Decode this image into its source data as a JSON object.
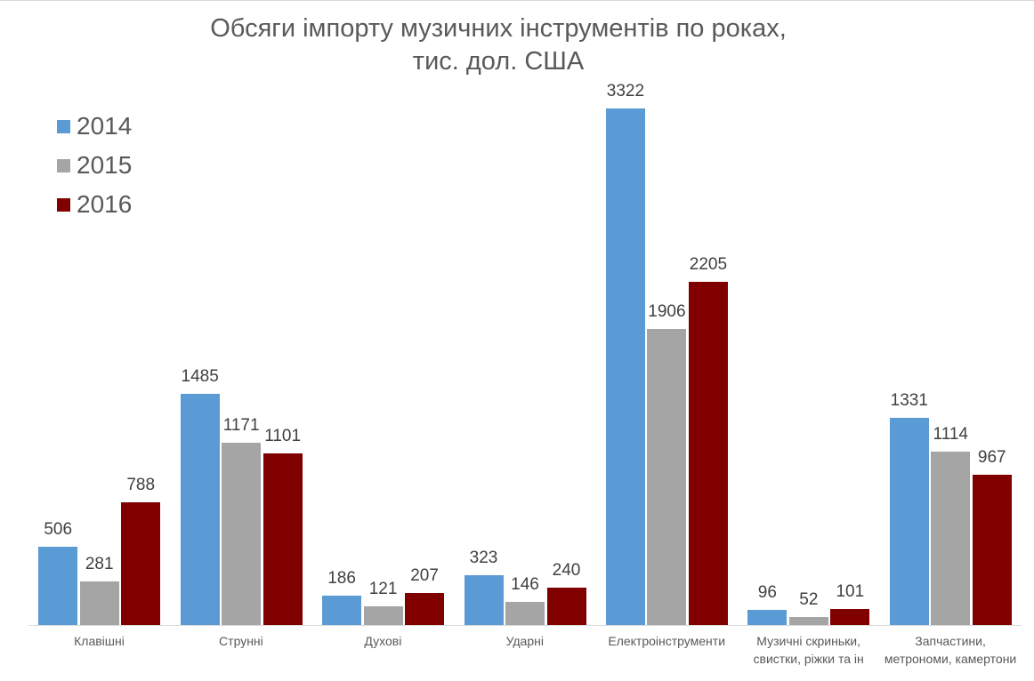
{
  "chart_data": {
    "type": "bar",
    "title": "Обсяги імпорту музичних інструментів по роках, тис. дол. США",
    "title_lines": [
      "Обсяги імпорту музичних інструментів по роках,",
      "тис. дол. США"
    ],
    "xlabel": "",
    "ylabel": "",
    "categories": [
      "Клавішні",
      "Струнні",
      "Духові",
      "Ударні",
      "Електроінструменти",
      "Музичні скриньки, свистки, ріжки та ін",
      "Запчастини, метрономи, камертони"
    ],
    "category_lines": [
      [
        "Клавішні"
      ],
      [
        "Струнні"
      ],
      [
        "Духові"
      ],
      [
        "Ударні"
      ],
      [
        "Електроінструменти"
      ],
      [
        "Музичні скриньки,",
        "свистки, ріжки та ін"
      ],
      [
        "Запчастини,",
        "метрономи, камертони"
      ]
    ],
    "series": [
      {
        "name": "2014",
        "color": "#5b9bd5",
        "values": [
          506,
          1485,
          186,
          323,
          3322,
          96,
          1331
        ]
      },
      {
        "name": "2015",
        "color": "#a5a5a5",
        "values": [
          281,
          1171,
          121,
          146,
          1906,
          52,
          1114
        ]
      },
      {
        "name": "2016",
        "color": "#800000",
        "values": [
          788,
          1101,
          207,
          240,
          2205,
          101,
          967
        ]
      }
    ],
    "ylim": [
      0,
      3322
    ],
    "grid": false,
    "legend_position": "top-left",
    "data_labels": true
  }
}
